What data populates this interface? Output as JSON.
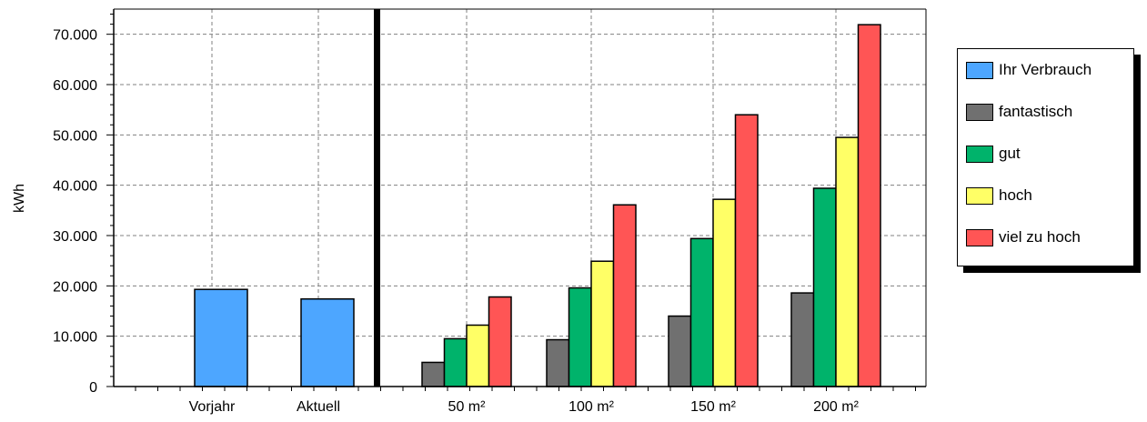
{
  "chart_data": {
    "type": "bar",
    "ylabel": "kWh",
    "ylim": [
      0,
      75000
    ],
    "yticks": [
      {
        "value": 0,
        "label": "0"
      },
      {
        "value": 10000,
        "label": "10.000"
      },
      {
        "value": 20000,
        "label": "20.000"
      },
      {
        "value": 30000,
        "label": "30.000"
      },
      {
        "value": 40000,
        "label": "40.000"
      },
      {
        "value": 50000,
        "label": "50.000"
      },
      {
        "value": 60000,
        "label": "60.000"
      },
      {
        "value": 70000,
        "label": "70.000"
      }
    ],
    "grid": true,
    "legend_position": "right",
    "groups": [
      {
        "panel": "left",
        "categories": [
          "Vorjahr",
          "Aktuell"
        ],
        "series": [
          {
            "name": "Ihr Verbrauch",
            "values": [
              19300,
              17400
            ]
          }
        ]
      },
      {
        "panel": "right",
        "categories": [
          "50 m²",
          "100 m²",
          "150 m²",
          "200 m²"
        ],
        "series": [
          {
            "name": "fantastisch",
            "values": [
              4800,
              9300,
              14000,
              18600
            ]
          },
          {
            "name": "gut",
            "values": [
              9500,
              19600,
              29400,
              39400
            ]
          },
          {
            "name": "hoch",
            "values": [
              12200,
              24900,
              37200,
              49500
            ]
          },
          {
            "name": "viel zu hoch",
            "values": [
              17800,
              36100,
              54000,
              71900
            ]
          }
        ]
      }
    ]
  },
  "legend": {
    "items": [
      {
        "label": "Ihr Verbrauch",
        "color": "#4da6ff"
      },
      {
        "label": "fantastisch",
        "color": "#707070"
      },
      {
        "label": "gut",
        "color": "#00b36b"
      },
      {
        "label": "hoch",
        "color": "#ffff66"
      },
      {
        "label": "viel zu hoch",
        "color": "#ff5555"
      }
    ]
  }
}
